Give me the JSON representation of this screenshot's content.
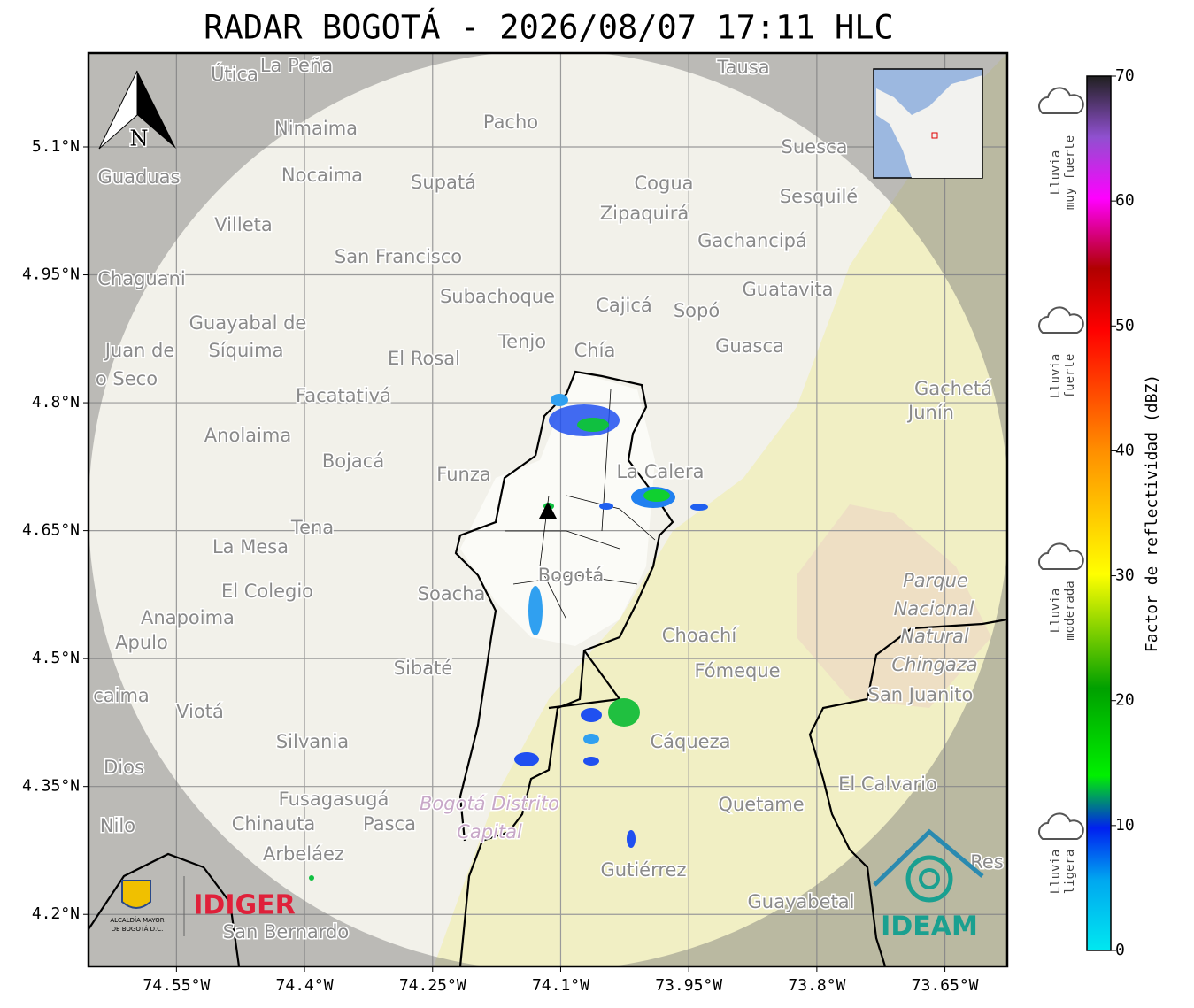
{
  "title": "RADAR BOGOTÁ - 2026/08/07 17:11 HLC",
  "map": {
    "xlim": [
      -74.653,
      -73.577
    ],
    "ylim": [
      4.139,
      5.21
    ],
    "xticks": [
      {
        "value": -74.55,
        "label": "74.55°W"
      },
      {
        "value": -74.4,
        "label": "74.4°W"
      },
      {
        "value": -74.25,
        "label": "74.25°W"
      },
      {
        "value": -74.1,
        "label": "74.1°W"
      },
      {
        "value": -73.95,
        "label": "73.95°W"
      },
      {
        "value": -73.8,
        "label": "73.8°W"
      },
      {
        "value": -73.65,
        "label": "73.65°W"
      }
    ],
    "yticks": [
      {
        "value": 4.2,
        "label": "4.2°N"
      },
      {
        "value": 4.35,
        "label": "4.35°N"
      },
      {
        "value": 4.5,
        "label": "4.5°N"
      },
      {
        "value": 4.65,
        "label": "4.65°N"
      },
      {
        "value": 4.8,
        "label": "4.8°N"
      },
      {
        "value": 4.95,
        "label": "4.95°N"
      },
      {
        "value": 5.1,
        "label": "5.1°N"
      }
    ],
    "grid": true,
    "compass": "N",
    "places": [
      "Útica",
      "La Peña",
      "Tausa",
      "Pacho",
      "Nimaima",
      "Guaduas",
      "Nocaima",
      "Supatá",
      "Cogua",
      "Suesca",
      "Sesquilé",
      "Zipaquirá",
      "Villeta",
      "Gachancipá",
      "San Francisco",
      "Chaguani",
      "Guatavita",
      "Subachoque",
      "Cajicá",
      "Sopó",
      "Guayabal de",
      "Síquima",
      "Juan de",
      "Tenjo",
      "Chía",
      "Guasca",
      "El Rosal",
      "o Seco",
      "Facatativá",
      "Gachetá",
      "Junín",
      "Anolaima",
      "Bojacá",
      "Funza",
      "La Calera",
      "Tena",
      "La Mesa",
      "Bogotá",
      "Parque",
      "Soacha",
      "El Colegio",
      "Nacional",
      "Anapoima",
      "Apulo",
      "Natural",
      "Choachí",
      "Chingaza",
      "Sibaté",
      "Fómeque",
      "San Juanito",
      "caima",
      "Viotá",
      "Cáqueza",
      "Silvania",
      "Dios",
      "El Calvario",
      "Quetame",
      "Fusagasugá",
      "Bogotá Distrito",
      "Capital",
      "Nilo",
      "Chinauta",
      "Pasca",
      "Arbeláez",
      "Gutiérrez",
      "Guayabetal",
      "San Bernardo",
      "Res"
    ]
  },
  "colorbar": {
    "label": "Factor de reflectividad (dBZ)",
    "lim": [
      0,
      70
    ],
    "ticks": [
      0,
      10,
      20,
      30,
      40,
      50,
      60,
      70
    ]
  },
  "legend": [
    {
      "lines": [
        "Lluvia",
        "muy fuerte"
      ]
    },
    {
      "lines": [
        "Lluvia",
        "fuerte"
      ]
    },
    {
      "lines": [
        "Lluvia",
        "moderada"
      ]
    },
    {
      "lines": [
        "Lluvia",
        "ligera"
      ]
    }
  ],
  "logos": {
    "alcaldia": [
      "ALCALDÍA MAYOR",
      "DE BOGOTÁ D.C."
    ],
    "idiger": "IDIGER",
    "ideam": "IDEAM"
  }
}
